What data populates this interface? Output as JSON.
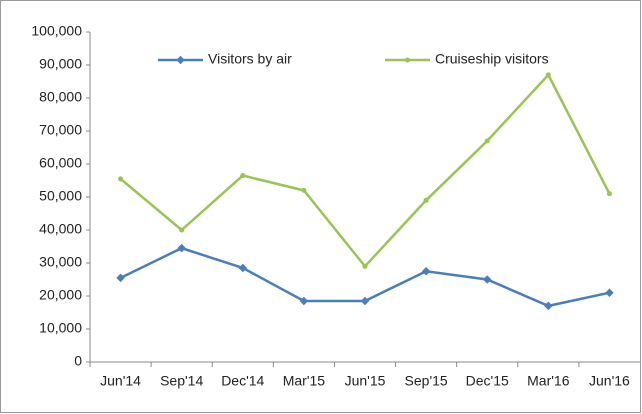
{
  "chart_data": {
    "type": "line",
    "categories": [
      "Jun'14",
      "Sep'14",
      "Dec'14",
      "Mar'15",
      "Jun'15",
      "Sep'15",
      "Dec'15",
      "Mar'16",
      "Jun'16"
    ],
    "series": [
      {
        "name": "Visitors by air",
        "color": "#4a7ebb",
        "values": [
          25500,
          34500,
          28500,
          18500,
          18500,
          27500,
          25000,
          17000,
          21000
        ]
      },
      {
        "name": "Cruiseship visitors",
        "color": "#98c454",
        "values": [
          55500,
          40000,
          56500,
          52000,
          29000,
          49000,
          67000,
          87000,
          51000
        ]
      }
    ],
    "ylim": [
      0,
      100000
    ],
    "yticks": [
      0,
      {
        "value": 10000,
        "label": "10,000"
      },
      {
        "value": 20000,
        "label": "20,000"
      },
      {
        "value": 30000,
        "label": "30,000"
      },
      {
        "value": 40000,
        "label": "40,000"
      },
      {
        "value": 50000,
        "label": "50,000"
      },
      {
        "value": 60000,
        "label": "60,000"
      },
      {
        "value": 70000,
        "label": "70,000"
      },
      {
        "value": 80000,
        "label": "80,000"
      },
      {
        "value": 90000,
        "label": "90,000"
      },
      {
        "value": 100000,
        "label": "100,000"
      }
    ],
    "legend": "top"
  }
}
